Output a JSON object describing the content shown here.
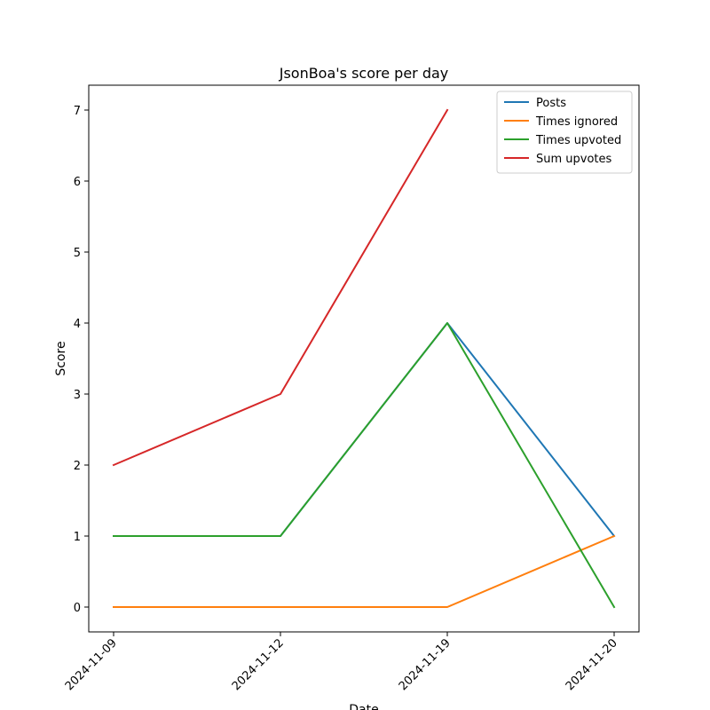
{
  "chart_data": {
    "type": "line",
    "title": "JsonBoa's score per day",
    "xlabel": "Date",
    "ylabel": "Score",
    "categories": [
      "2024-11-09",
      "2024-11-12",
      "2024-11-19",
      "2024-11-20"
    ],
    "ylim": [
      -0.35,
      7.35
    ],
    "yticks": [
      0,
      1,
      2,
      3,
      4,
      5,
      6,
      7
    ],
    "grid": false,
    "legend_position": "top-right",
    "series": [
      {
        "name": "Posts",
        "color": "#1f77b4",
        "values": [
          1,
          1,
          4,
          1
        ]
      },
      {
        "name": "Times ignored",
        "color": "#ff7f0e",
        "values": [
          0,
          0,
          0,
          1
        ]
      },
      {
        "name": "Times upvoted",
        "color": "#2ca02c",
        "values": [
          1,
          1,
          4,
          0
        ]
      },
      {
        "name": "Sum upvotes",
        "color": "#d62728",
        "values": [
          2,
          3,
          7,
          null
        ]
      }
    ]
  }
}
